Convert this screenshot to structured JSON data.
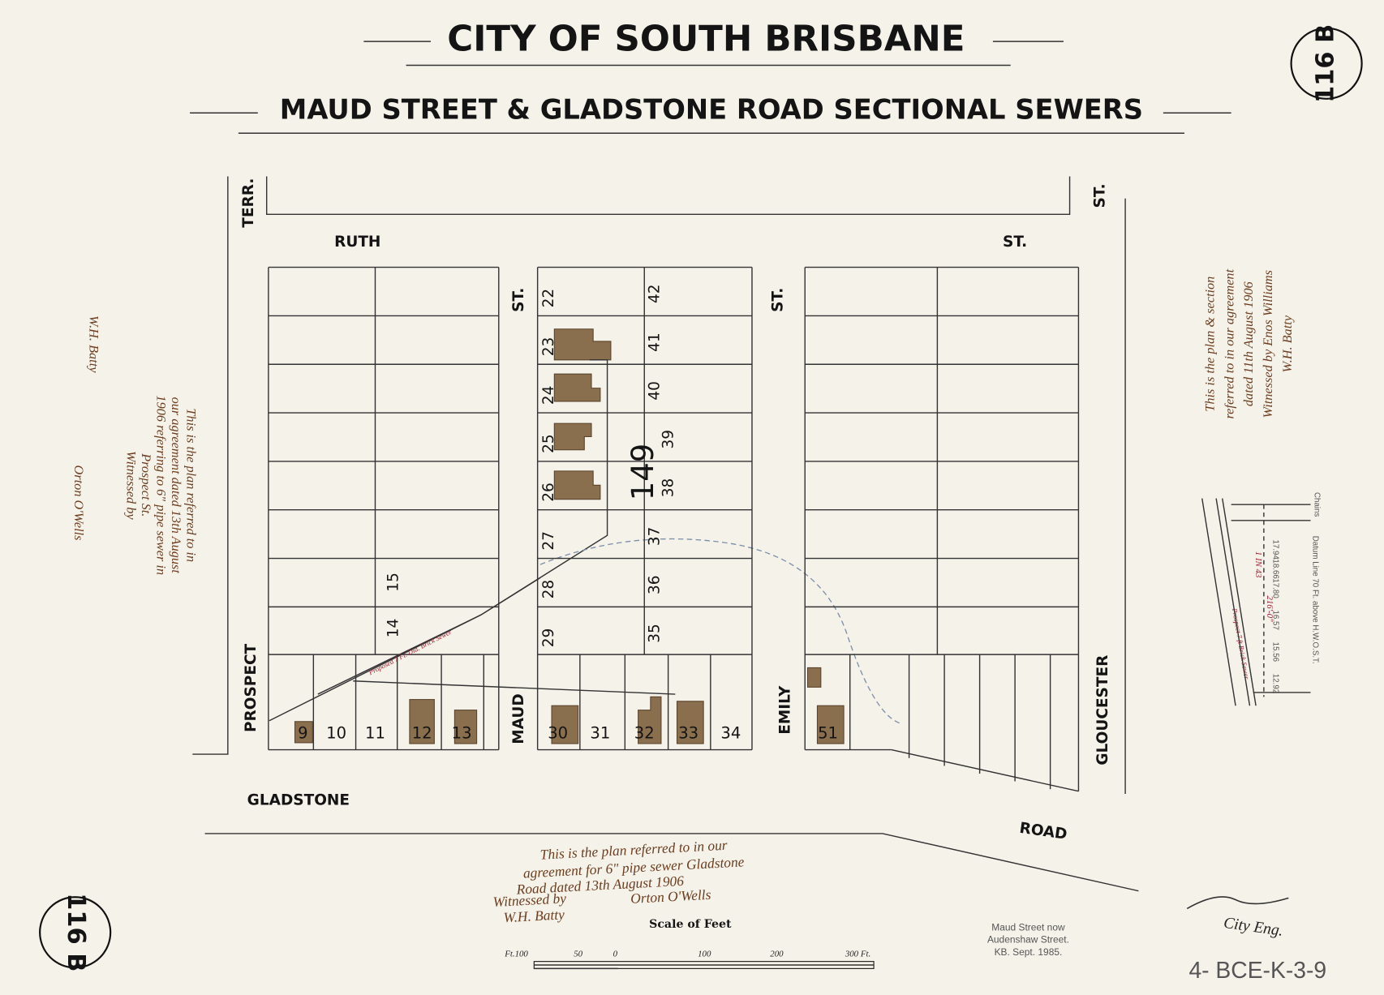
{
  "header": {
    "title": "CITY OF SOUTH BRISBANE",
    "subtitle": "MAUD STREET & GLADSTONE ROAD SECTIONAL SEWERS"
  },
  "stamps": [
    "116 B",
    "116 B"
  ],
  "streets": {
    "terr": "TERR.",
    "ruth": "RUTH",
    "ruth_st": "ST.",
    "gloucester_st": "ST.",
    "maud_st": "ST.",
    "emily_st": "ST.",
    "prospect": "PROSPECT",
    "maud": "MAUD",
    "emily": "EMILY",
    "gloucester": "GLOUCESTER",
    "gladstone": "GLADSTONE",
    "road": "ROAD"
  },
  "block_number": "149",
  "lots": {
    "west_front": [
      "9",
      "10",
      "11",
      "12",
      "13"
    ],
    "west_side": [
      "15",
      "14"
    ],
    "maud_side": [
      "22",
      "23",
      "24",
      "25",
      "26",
      "27",
      "28",
      "29"
    ],
    "emily_side": [
      "42",
      "41",
      "40",
      "39",
      "38",
      "37",
      "36",
      "35"
    ],
    "middle_front": [
      "30",
      "31",
      "32",
      "33",
      "34"
    ],
    "east_front": [
      "51"
    ]
  },
  "sewer_label": "Proposed 7 Ft. Dia. Brick Sewer",
  "notes": {
    "left": [
      "This is the plan referred to in",
      "our agreement dated 13th August",
      "1906 referring to 6\" pipe sewer in",
      "Prospect St.",
      "Witnessed by",
      "W.H. Batty",
      "Orton O'Wells"
    ],
    "right": [
      "This is the plan & section",
      "referred to in our agreement",
      "dated 11th August 1906",
      "Witnessed by  Enos Williams",
      "W.H. Batty"
    ],
    "bottom": [
      "This is the plan referred to in our",
      "agreement for 6\" pipe sewer Gladstone",
      "Road dated 13th August 1906",
      "Witnessed by",
      "W.H. Batty",
      "Orton O'Wells"
    ],
    "modern": [
      "Maud Street now",
      "Audenshaw Street.",
      "KB. Sept. 1985."
    ],
    "engineer": "City Eng."
  },
  "profile": {
    "levels": [
      "12.92",
      "15.56",
      "16.57",
      "17.80",
      "18.66",
      "17.94"
    ],
    "gradient": "1 IN 43",
    "length": "216'-0\"",
    "datum": "Datum Line 70 Ft. above H.W.O.S.T.",
    "chains": "Chains",
    "sewer": "Prospect 7 ft Brick Sewer"
  },
  "scale": {
    "title": "Scale of Feet",
    "ticks": [
      "Ft.100",
      "50",
      "0",
      "100",
      "200",
      "300 Ft."
    ]
  },
  "reference": "4- BCE-K-3-9"
}
